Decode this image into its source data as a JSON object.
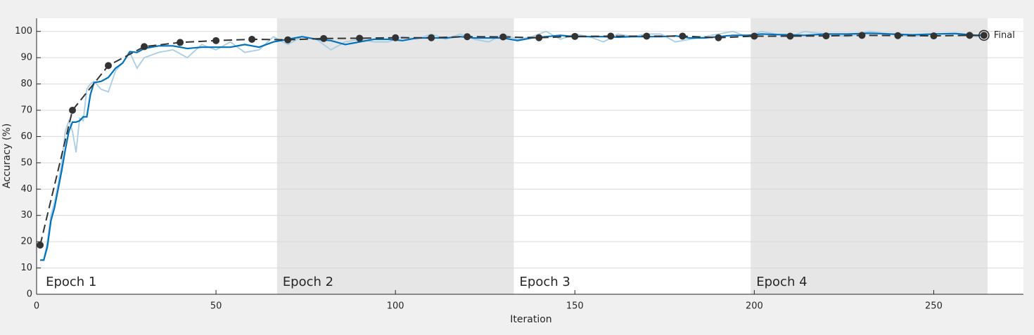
{
  "chart_data": {
    "type": "line",
    "x_label": "Iteration",
    "y_label": "Accuracy (%)",
    "xlim": [
      0,
      275
    ],
    "ylim": [
      0,
      105
    ],
    "xticks": [
      0,
      50,
      100,
      150,
      200,
      250
    ],
    "yticks": [
      0,
      10,
      20,
      30,
      40,
      50,
      60,
      70,
      80,
      90,
      100
    ],
    "grid": true,
    "epochs": [
      {
        "label": "Epoch 1",
        "start": 1,
        "end": 67,
        "shaded": false
      },
      {
        "label": "Epoch 2",
        "start": 67,
        "end": 133,
        "shaded": true
      },
      {
        "label": "Epoch 3",
        "start": 133,
        "end": 199,
        "shaded": false
      },
      {
        "label": "Epoch 4",
        "start": 199,
        "end": 265,
        "shaded": true
      }
    ],
    "shade_color": "#e6e6e6",
    "series": [
      {
        "color": "#a9cde3",
        "style": "solid",
        "x": [
          1,
          2,
          3,
          4,
          5,
          6,
          7,
          8,
          9,
          10,
          11,
          12,
          13,
          14,
          15,
          16,
          18,
          20,
          22,
          24,
          26,
          28,
          30,
          34,
          38,
          42,
          46,
          50,
          54,
          58,
          62,
          66,
          70,
          74,
          78,
          82,
          86,
          90,
          94,
          98,
          102,
          106,
          110,
          114,
          118,
          122,
          126,
          130,
          134,
          138,
          142,
          146,
          150,
          154,
          158,
          162,
          166,
          170,
          174,
          178,
          182,
          186,
          190,
          194,
          198,
          202,
          206,
          210,
          214,
          220,
          226,
          232,
          238,
          244,
          250,
          256,
          262,
          264
        ],
        "values": [
          13,
          13,
          20,
          30,
          35,
          42,
          50,
          62,
          66,
          62,
          54,
          67,
          66,
          78,
          80,
          81,
          78,
          77,
          85,
          88,
          92,
          86,
          90,
          92,
          93,
          90,
          95,
          93,
          96,
          92,
          93,
          98,
          95,
          98,
          97,
          93,
          96,
          97,
          96,
          96,
          98,
          97,
          99,
          97,
          99,
          97,
          96,
          99,
          97,
          98,
          100,
          97,
          99,
          98,
          96,
          99,
          98,
          99,
          99,
          96,
          97,
          98,
          99,
          100,
          98,
          100,
          99,
          98,
          100,
          99,
          98,
          100,
          99,
          98,
          99,
          99,
          98,
          99
        ]
      },
      {
        "color": "#0072bd",
        "style": "solid",
        "x": [
          1,
          2,
          3,
          4,
          5,
          6,
          7,
          8,
          9,
          10,
          11,
          12,
          13,
          14,
          15,
          16,
          18,
          20,
          22,
          24,
          26,
          28,
          30,
          34,
          38,
          42,
          46,
          50,
          54,
          58,
          62,
          66,
          70,
          74,
          78,
          82,
          86,
          90,
          94,
          98,
          102,
          106,
          110,
          114,
          118,
          122,
          126,
          130,
          134,
          138,
          142,
          146,
          150,
          154,
          158,
          162,
          166,
          170,
          174,
          178,
          182,
          186,
          190,
          194,
          198,
          202,
          206,
          210,
          214,
          220,
          226,
          232,
          238,
          244,
          250,
          256,
          262,
          264
        ],
        "values": [
          13,
          13,
          18,
          28,
          33,
          40,
          47,
          55,
          62,
          65.5,
          65.5,
          66,
          67.5,
          67.5,
          76,
          80.5,
          81,
          82.5,
          86,
          88,
          92.3,
          92,
          93.5,
          94.5,
          94.5,
          93.5,
          94,
          94,
          94,
          95,
          94,
          96,
          97,
          98,
          97,
          96.5,
          95,
          96,
          97,
          97,
          96.5,
          97.5,
          97.5,
          97.5,
          98,
          97.5,
          97.5,
          97.5,
          96.5,
          97.5,
          98,
          98.5,
          98,
          98,
          98,
          97.8,
          98,
          98,
          98,
          98.3,
          97.5,
          97.5,
          98,
          98.5,
          98.5,
          99,
          98.8,
          98.7,
          98.5,
          99,
          99,
          99.3,
          99,
          98.7,
          99,
          99.2,
          98.5,
          98.5
        ]
      },
      {
        "color": "#333333",
        "style": "dashed",
        "markers": true,
        "x": [
          1,
          10,
          20,
          30,
          40,
          50,
          60,
          70,
          80,
          90,
          100,
          110,
          120,
          130,
          140,
          150,
          160,
          170,
          180,
          190,
          200,
          210,
          220,
          230,
          240,
          250,
          260,
          264
        ],
        "values": [
          18.7,
          70,
          87,
          94.2,
          95.8,
          96.5,
          97,
          96.8,
          97.3,
          97.4,
          97.6,
          97.6,
          98,
          97.9,
          97.6,
          98.1,
          98.2,
          98.2,
          98.2,
          97.6,
          98.2,
          98.2,
          98.3,
          98.5,
          98.4,
          98.3,
          98.5,
          98.5
        ]
      }
    ],
    "final": {
      "label": "Final",
      "x": 264,
      "y": 98.5
    }
  }
}
